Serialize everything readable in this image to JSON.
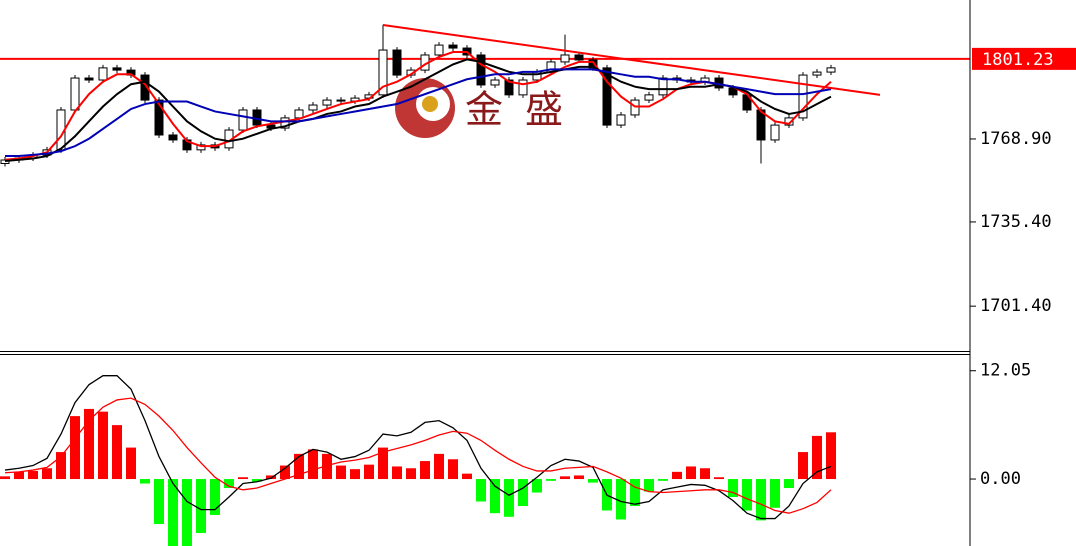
{
  "chart_data": [
    {
      "type": "candlestick",
      "open": [
        1759.0,
        1760.4,
        1761.2,
        1762.4,
        1764.5,
        1780.6,
        1793.5,
        1792.7,
        1797.6,
        1796.7,
        1794.7,
        1784.6,
        1770.5,
        1768.5,
        1764.5,
        1766.5,
        1765.3,
        1772.5,
        1780.6,
        1774.5,
        1773.3,
        1777.4,
        1780.6,
        1782.6,
        1784.6,
        1784.2,
        1785.4,
        1786.7,
        1804.8,
        1794.7,
        1796.7,
        1802.8,
        1806.8,
        1805.6,
        1802.8,
        1790.7,
        1792.7,
        1786.7,
        1792.7,
        1795.9,
        1800.0,
        1802.8,
        1800.8,
        1797.6,
        1774.5,
        1778.6,
        1784.6,
        1786.7,
        1793.5,
        1792.7,
        1791.9,
        1793.5,
        1789.5,
        1786.7,
        1780.6,
        1768.5,
        1774.5,
        1777.4,
        1794.7,
        1795.9
      ],
      "high": [
        1761.6,
        1762.4,
        1763.6,
        1765.7,
        1781.8,
        1794.7,
        1794.7,
        1798.8,
        1798.8,
        1797.9,
        1795.9,
        1785.8,
        1771.7,
        1769.7,
        1767.7,
        1767.7,
        1773.7,
        1781.8,
        1781.8,
        1775.7,
        1778.6,
        1781.8,
        1783.8,
        1785.8,
        1785.8,
        1786.6,
        1787.9,
        1815.0,
        1806.0,
        1797.9,
        1804.0,
        1808.0,
        1808.0,
        1806.8,
        1804.0,
        1793.9,
        1793.9,
        1793.9,
        1797.1,
        1801.2,
        1811.0,
        1804.0,
        1802.0,
        1798.8,
        1779.8,
        1785.8,
        1787.9,
        1794.7,
        1794.7,
        1793.9,
        1794.7,
        1794.7,
        1790.7,
        1787.9,
        1781.8,
        1775.7,
        1778.6,
        1795.9,
        1797.1,
        1798.8
      ],
      "low": [
        1757.8,
        1759.2,
        1760.0,
        1761.2,
        1763.3,
        1779.4,
        1791.5,
        1791.5,
        1795.5,
        1793.5,
        1783.4,
        1769.3,
        1767.3,
        1763.3,
        1763.3,
        1764.1,
        1764.1,
        1771.3,
        1773.3,
        1772.1,
        1772.1,
        1776.2,
        1779.4,
        1781.4,
        1783.0,
        1783.0,
        1784.2,
        1785.5,
        1793.5,
        1793.5,
        1795.5,
        1801.6,
        1804.4,
        1801.6,
        1789.5,
        1789.5,
        1785.5,
        1785.5,
        1791.5,
        1794.7,
        1798.8,
        1799.6,
        1796.4,
        1773.3,
        1773.3,
        1777.4,
        1783.4,
        1785.5,
        1791.5,
        1790.7,
        1790.7,
        1788.3,
        1785.5,
        1779.4,
        1759.0,
        1767.3,
        1773.3,
        1776.2,
        1793.5,
        1794.7
      ],
      "close": [
        1760.4,
        1761.2,
        1762.4,
        1764.5,
        1780.6,
        1793.5,
        1792.7,
        1797.6,
        1796.7,
        1794.7,
        1784.6,
        1770.5,
        1768.5,
        1764.5,
        1766.5,
        1765.3,
        1772.5,
        1780.6,
        1774.5,
        1773.3,
        1777.4,
        1780.6,
        1782.6,
        1784.6,
        1784.2,
        1785.4,
        1786.7,
        1804.8,
        1794.7,
        1796.7,
        1802.8,
        1806.8,
        1805.6,
        1802.8,
        1790.7,
        1792.7,
        1786.7,
        1792.7,
        1795.9,
        1800.0,
        1802.8,
        1800.8,
        1797.6,
        1774.5,
        1778.6,
        1784.6,
        1786.7,
        1793.5,
        1792.7,
        1791.9,
        1793.5,
        1789.5,
        1786.7,
        1780.6,
        1768.5,
        1774.5,
        1777.4,
        1794.7,
        1795.9,
        1797.6
      ],
      "series": [
        {
          "color": "#ff0000",
          "values": [
            1760.5,
            1761,
            1762,
            1763.5,
            1770,
            1780,
            1787,
            1792,
            1795,
            1795,
            1791,
            1783,
            1775,
            1768,
            1766,
            1766,
            1768,
            1772,
            1774,
            1775,
            1776,
            1777,
            1779,
            1781,
            1783,
            1784,
            1785,
            1790,
            1792,
            1795,
            1799,
            1802,
            1804,
            1804,
            1799,
            1796,
            1792,
            1791,
            1792,
            1795,
            1798,
            1800,
            1800,
            1792,
            1786,
            1782,
            1782,
            1785,
            1789,
            1791,
            1792,
            1791,
            1790,
            1787,
            1780,
            1776,
            1775,
            1781,
            1787,
            1792
          ]
        },
        {
          "color": "#000000",
          "values": [
            1760,
            1760.5,
            1761,
            1762,
            1765,
            1770,
            1776,
            1782,
            1787,
            1791,
            1792,
            1788,
            1782,
            1776,
            1772,
            1769,
            1768,
            1769,
            1771,
            1773,
            1774,
            1776,
            1777,
            1779,
            1780,
            1782,
            1783,
            1786,
            1788,
            1790,
            1793,
            1796,
            1799,
            1801,
            1800,
            1798,
            1796,
            1795,
            1795,
            1796,
            1797,
            1798,
            1798,
            1795,
            1792,
            1790,
            1789,
            1789,
            1789,
            1790,
            1790,
            1791,
            1790,
            1788,
            1784,
            1781,
            1779,
            1780,
            1783,
            1786
          ]
        },
        {
          "color": "#0000b4",
          "values": [
            1762,
            1762,
            1762.5,
            1763,
            1764,
            1766,
            1769,
            1773,
            1777,
            1781,
            1783,
            1784,
            1784,
            1784,
            1782,
            1780,
            1779,
            1778,
            1777,
            1776,
            1776,
            1776,
            1777,
            1778,
            1779,
            1780,
            1781,
            1782,
            1783,
            1785,
            1787,
            1789,
            1791,
            1793,
            1794,
            1795,
            1795,
            1796,
            1796,
            1797,
            1797,
            1797,
            1797,
            1796,
            1795,
            1794,
            1794,
            1793,
            1793,
            1792,
            1792,
            1791,
            1790,
            1789,
            1788,
            1787,
            1787,
            1787,
            1788,
            1789
          ]
        }
      ],
      "trendline": {
        "color": "#ff0000",
        "x": [
          27,
          62.5
        ],
        "values": [
          1814.9,
          1786.7
        ]
      },
      "last_price": 1801.23,
      "last_price_color": "#ff0000",
      "watermark": [
        "金",
        "盛"
      ],
      "ylim": [
        1683.7,
        1825.0
      ],
      "yticks": [
        {
          "value": 1768.9,
          "label": "1768.90"
        },
        {
          "value": 1735.4,
          "label": "1735.40"
        },
        {
          "value": 1701.4,
          "label": "1701.40"
        }
      ]
    },
    {
      "type": "macd",
      "histogram": [
        0.3,
        0.8,
        0.9,
        1.2,
        3,
        7,
        7.8,
        7.5,
        6,
        3.5,
        -0.5,
        -5,
        -7.5,
        -7.5,
        -6,
        -4,
        -1,
        0.2,
        -0.3,
        0.4,
        1.5,
        2.8,
        3.3,
        2.8,
        1.5,
        1.1,
        1.6,
        3.5,
        1.4,
        1.2,
        2,
        2.8,
        2.2,
        0.6,
        -2.5,
        -3.8,
        -4.2,
        -3,
        -1.5,
        -0.2,
        0.3,
        0.4,
        -0.4,
        -3.5,
        -4.5,
        -3,
        -1.4,
        -0.2,
        0.8,
        1.4,
        1.2,
        0.2,
        -2,
        -3.5,
        -4.6,
        -3.2,
        -1,
        3,
        4.8,
        5.2
      ],
      "positive_color": "#ff0000",
      "negative_color": "#00ff00",
      "series": [
        {
          "color": "#000000",
          "values": [
            1.0,
            1.2,
            1.5,
            2.3,
            5,
            8.5,
            10.5,
            11.5,
            11.5,
            10,
            6.5,
            2.5,
            -0.5,
            -2.5,
            -3.4,
            -3.4,
            -2,
            -0.5,
            -0.3,
            0.1,
            1.2,
            2.5,
            3.3,
            3,
            2.2,
            2.5,
            3.2,
            5,
            4.8,
            5.2,
            6.3,
            6.5,
            5.7,
            4.3,
            1.2,
            -0.8,
            -1.8,
            -1,
            0.2,
            1.5,
            2.2,
            2,
            1.3,
            -1.8,
            -2.5,
            -2.8,
            -2.5,
            -1.2,
            -0.9,
            -0.6,
            -0.7,
            -1.3,
            -2.4,
            -3.8,
            -4.4,
            -4.4,
            -3,
            -0.5,
            0.8,
            1.4
          ]
        },
        {
          "color": "#ff0000",
          "values": [
            0.7,
            0.8,
            1,
            1.3,
            2.5,
            4.5,
            6.5,
            8,
            8.8,
            9,
            8.3,
            7,
            5.4,
            3.5,
            1.8,
            0.2,
            -0.8,
            -1.2,
            -1,
            -0.5,
            0,
            0.5,
            1,
            1.5,
            1.9,
            2.1,
            2.4,
            3,
            3.4,
            3.8,
            4.3,
            4.9,
            5.3,
            5.1,
            4.3,
            3.2,
            2.2,
            1.4,
            0.9,
            0.9,
            1.2,
            1.3,
            1.4,
            0.8,
            0.1,
            -0.9,
            -1.4,
            -1.5,
            -1.4,
            -1.3,
            -1.2,
            -1.2,
            -1.5,
            -2.2,
            -2.8,
            -3.5,
            -3.8,
            -3.3,
            -2.6,
            -1.2
          ]
        }
      ],
      "ylim": [
        -7.45,
        13.8
      ],
      "yticks": [
        12.05,
        {
          "value": 0,
          "label": "0.00"
        }
      ]
    }
  ]
}
